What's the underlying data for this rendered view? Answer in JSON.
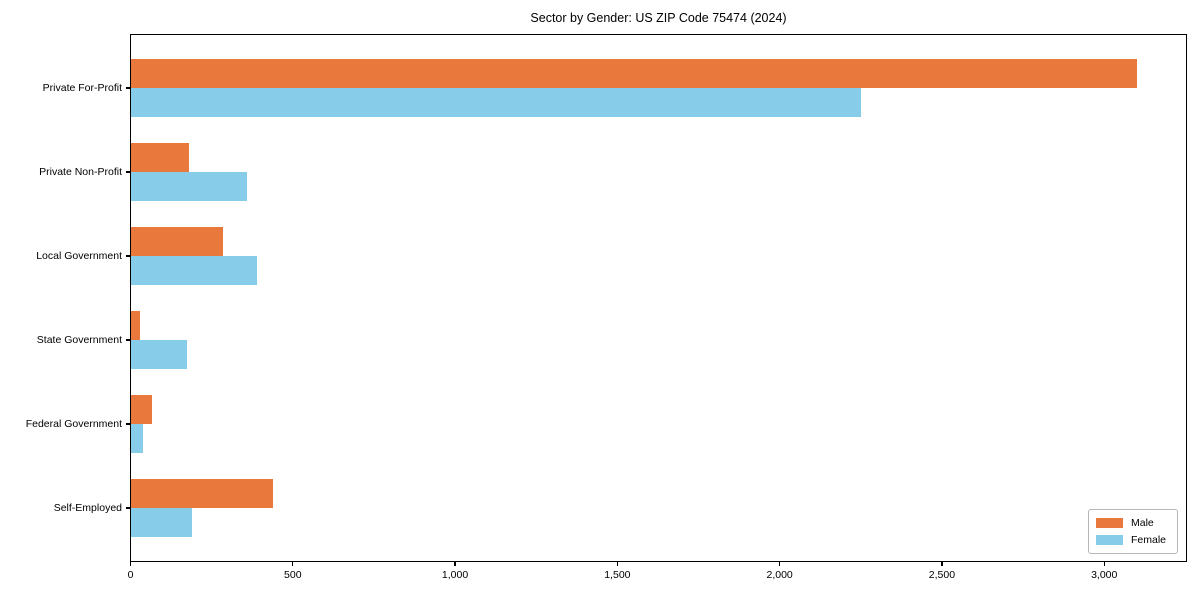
{
  "chart_data": {
    "type": "bar",
    "orientation": "horizontal",
    "title": "Sector by Gender: US ZIP Code 75474 (2024)",
    "categories": [
      "Private For-Profit",
      "Private Non-Profit",
      "Local Government",
      "State Government",
      "Federal Government",
      "Self-Employed"
    ],
    "series": [
      {
        "name": "Male",
        "color": "#e8783b",
        "values": [
          3100,
          180,
          285,
          30,
          65,
          440
        ]
      },
      {
        "name": "Female",
        "color": "#87cde9",
        "values": [
          2250,
          360,
          390,
          175,
          40,
          190
        ]
      }
    ],
    "xlabel": "",
    "ylabel": "",
    "xlim": [
      0,
      3255
    ],
    "xticks": [
      0,
      500,
      1000,
      1500,
      2000,
      2500,
      3000
    ],
    "xtick_labels": [
      "0",
      "500",
      "1,000",
      "1,500",
      "2,000",
      "2,500",
      "3,000"
    ],
    "grid": false,
    "legend_position": "lower right"
  }
}
